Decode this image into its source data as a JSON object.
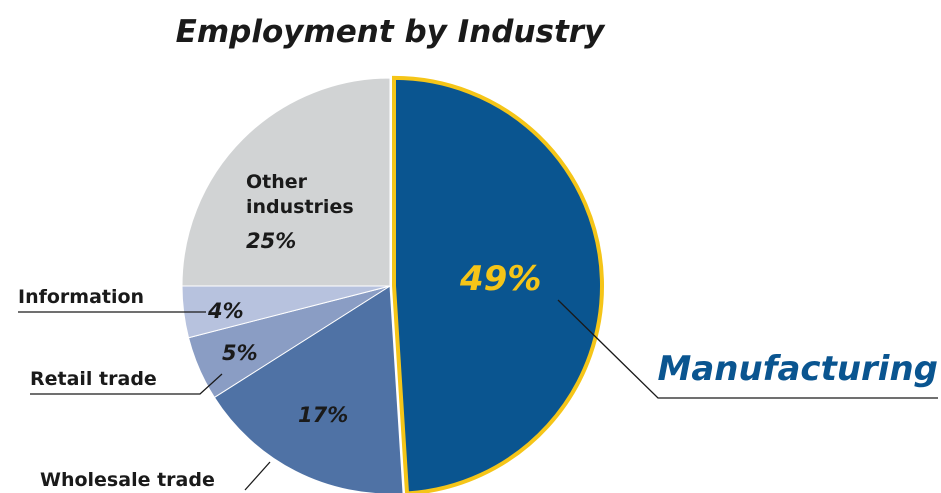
{
  "chart_data": {
    "type": "pie",
    "title": "Employment by Industry",
    "slices": [
      {
        "label": "Manufacturing",
        "value": 49,
        "value_label": "49%",
        "color": "#0a5590",
        "outline": "#f5c518",
        "label_color": "#0a5590",
        "value_color": "#f5c518"
      },
      {
        "label": "Wholesale trade",
        "value": 17,
        "value_label": "17%",
        "color": "#4f72a5"
      },
      {
        "label": "Retail trade",
        "value": 5,
        "value_label": "5%",
        "color": "#8a9dc4"
      },
      {
        "label": "Information",
        "value": 4,
        "value_label": "4%",
        "color": "#b7c2de"
      },
      {
        "label_lines": [
          "Other",
          "industries"
        ],
        "value": 25,
        "value_label": "25%",
        "color": "#d1d3d4"
      }
    ]
  }
}
